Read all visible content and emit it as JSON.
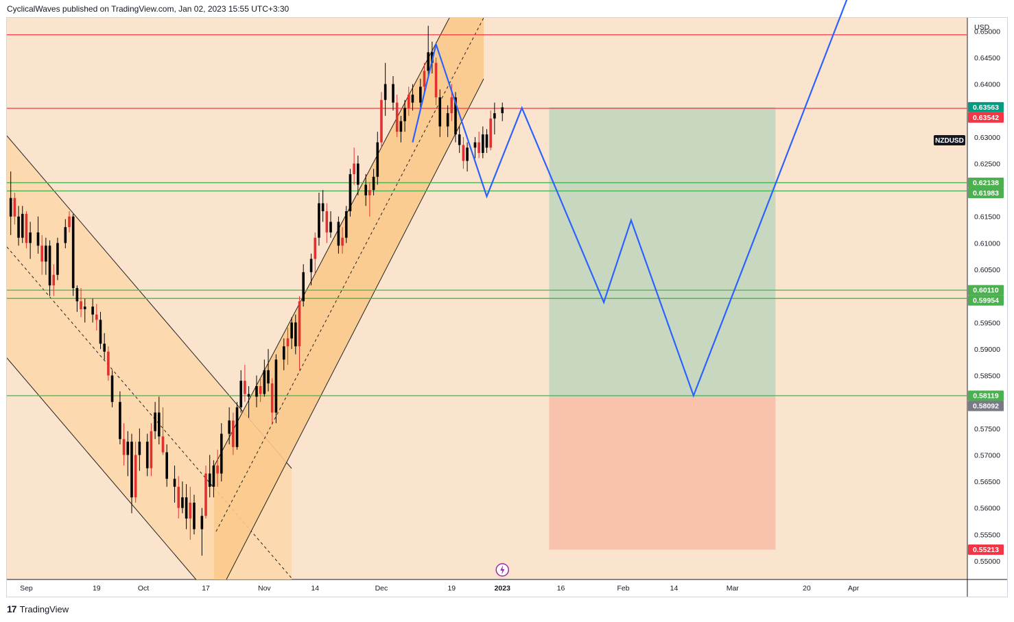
{
  "header": {
    "published_text": "CyclicalWaves published on TradingView.com, Jan 02, 2023 15:55 UTC+3:30"
  },
  "footer": {
    "brand": "TradingView"
  },
  "colors": {
    "background": "#fbe4cd",
    "channel_fill": "#fbc98c",
    "resistance": "#f23645",
    "support": "#4caf50",
    "projection": "#2962ff",
    "target_zone": "#c8d7c0",
    "stop_zone": "#f9c2ad",
    "candle": "#000000",
    "candle_alt": "#e03030",
    "last_price_badge": "#089981"
  },
  "chart_data": {
    "type": "candlestick",
    "symbol": "NZDUSD",
    "currency": "USD",
    "y_axis": {
      "range": [
        0.5465,
        0.6525
      ],
      "ticks": [
        "0.65000",
        "0.64500",
        "0.64000",
        "0.63000",
        "0.62500",
        "0.61500",
        "0.61000",
        "0.60500",
        "0.59500",
        "0.59000",
        "0.58500",
        "0.57500",
        "0.57000",
        "0.56500",
        "0.56000",
        "0.55500",
        "0.55000"
      ],
      "tick_values": [
        0.65,
        0.645,
        0.64,
        0.63,
        0.625,
        0.615,
        0.61,
        0.605,
        0.595,
        0.59,
        0.585,
        0.575,
        0.57,
        0.565,
        0.56,
        0.555,
        0.55
      ]
    },
    "x_axis": {
      "date_range": [
        "2022-08-27",
        "2023-04-30"
      ],
      "ticks": [
        {
          "label": "Sep",
          "date": "2022-09-01"
        },
        {
          "label": "19",
          "date": "2022-09-19"
        },
        {
          "label": "Oct",
          "date": "2022-10-01"
        },
        {
          "label": "17",
          "date": "2022-10-17"
        },
        {
          "label": "Nov",
          "date": "2022-11-01"
        },
        {
          "label": "14",
          "date": "2022-11-14"
        },
        {
          "label": "Dec",
          "date": "2022-12-01"
        },
        {
          "label": "19",
          "date": "2022-12-19"
        },
        {
          "label": "2023",
          "date": "2023-01-01"
        },
        {
          "label": "16",
          "date": "2023-01-16"
        },
        {
          "label": "Feb",
          "date": "2023-02-01"
        },
        {
          "label": "14",
          "date": "2023-02-14"
        },
        {
          "label": "Mar",
          "date": "2023-03-01"
        },
        {
          "label": "20",
          "date": "2023-03-20"
        },
        {
          "label": "Apr",
          "date": "2023-04-01"
        }
      ]
    },
    "price_badges": [
      {
        "value": "0.63563",
        "color": "#089981"
      },
      {
        "value": "0.63542",
        "color": "#f23645"
      },
      {
        "value": "0.62138",
        "color": "#4caf50"
      },
      {
        "value": "0.61983",
        "color": "#4caf50"
      },
      {
        "value": "0.60110",
        "color": "#4caf50"
      },
      {
        "value": "0.59954",
        "color": "#4caf50"
      },
      {
        "value": "0.58119",
        "color": "#4caf50"
      },
      {
        "value": "0.58092",
        "color": "#787b86"
      },
      {
        "value": "0.55213",
        "color": "#f23645"
      }
    ],
    "horizontal_levels": [
      {
        "price": 0.6493,
        "color": "#f23645",
        "kind": "resistance"
      },
      {
        "price": 0.63542,
        "color": "#f23645",
        "kind": "resistance"
      },
      {
        "price": 0.62138,
        "color": "#4caf50",
        "kind": "support"
      },
      {
        "price": 0.61983,
        "color": "#4caf50",
        "kind": "support"
      },
      {
        "price": 0.6011,
        "color": "#4caf50",
        "kind": "support"
      },
      {
        "price": 0.59954,
        "color": "#4caf50",
        "kind": "support"
      },
      {
        "price": 0.58119,
        "color": "#4caf50",
        "kind": "support"
      }
    ],
    "position_tool": {
      "start": "2023-01-13",
      "end": "2023-03-12",
      "entry": 0.58092,
      "target": 0.63563,
      "stop": 0.55213
    },
    "projection_path": [
      {
        "date": "2022-12-09",
        "price": 0.629
      },
      {
        "date": "2022-12-15",
        "price": 0.6475
      },
      {
        "date": "2022-12-28",
        "price": 0.6188
      },
      {
        "date": "2023-01-06",
        "price": 0.6355
      },
      {
        "date": "2023-01-27",
        "price": 0.5988
      },
      {
        "date": "2023-02-03",
        "price": 0.6143
      },
      {
        "date": "2023-02-19",
        "price": 0.5812
      },
      {
        "date": "2023-03-31",
        "price": 0.6573
      }
    ],
    "candles": [
      {
        "d": "2022-08-28",
        "o": 0.615,
        "h": 0.6235,
        "l": 0.6115,
        "c": 0.6185
      },
      {
        "d": "2022-08-29",
        "o": 0.6185,
        "h": 0.6195,
        "l": 0.6135,
        "c": 0.615
      },
      {
        "d": "2022-08-30",
        "o": 0.615,
        "h": 0.617,
        "l": 0.6095,
        "c": 0.611
      },
      {
        "d": "2022-08-31",
        "o": 0.611,
        "h": 0.617,
        "l": 0.61,
        "c": 0.6155
      },
      {
        "d": "2022-09-01",
        "o": 0.6155,
        "h": 0.616,
        "l": 0.609,
        "c": 0.61
      },
      {
        "d": "2022-09-02",
        "o": 0.61,
        "h": 0.614,
        "l": 0.607,
        "c": 0.612
      },
      {
        "d": "2022-09-04",
        "o": 0.612,
        "h": 0.615,
        "l": 0.608,
        "c": 0.6095
      },
      {
        "d": "2022-09-05",
        "o": 0.6095,
        "h": 0.6115,
        "l": 0.604,
        "c": 0.6065
      },
      {
        "d": "2022-09-06",
        "o": 0.6065,
        "h": 0.611,
        "l": 0.604,
        "c": 0.6095
      },
      {
        "d": "2022-09-07",
        "o": 0.6095,
        "h": 0.6105,
        "l": 0.6,
        "c": 0.602
      },
      {
        "d": "2022-09-08",
        "o": 0.602,
        "h": 0.606,
        "l": 0.6,
        "c": 0.604
      },
      {
        "d": "2022-09-09",
        "o": 0.604,
        "h": 0.611,
        "l": 0.603,
        "c": 0.61
      },
      {
        "d": "2022-09-11",
        "o": 0.61,
        "h": 0.6145,
        "l": 0.609,
        "c": 0.613
      },
      {
        "d": "2022-09-12",
        "o": 0.613,
        "h": 0.616,
        "l": 0.612,
        "c": 0.615
      },
      {
        "d": "2022-09-13",
        "o": 0.615,
        "h": 0.6155,
        "l": 0.6,
        "c": 0.6015
      },
      {
        "d": "2022-09-14",
        "o": 0.6015,
        "h": 0.602,
        "l": 0.597,
        "c": 0.599
      },
      {
        "d": "2022-09-15",
        "o": 0.599,
        "h": 0.6015,
        "l": 0.596,
        "c": 0.5975
      },
      {
        "d": "2022-09-16",
        "o": 0.5975,
        "h": 0.5995,
        "l": 0.595,
        "c": 0.598
      },
      {
        "d": "2022-09-18",
        "o": 0.598,
        "h": 0.5995,
        "l": 0.595,
        "c": 0.5965
      },
      {
        "d": "2022-09-19",
        "o": 0.5965,
        "h": 0.5985,
        "l": 0.5935,
        "c": 0.5955
      },
      {
        "d": "2022-09-20",
        "o": 0.5955,
        "h": 0.597,
        "l": 0.59,
        "c": 0.591
      },
      {
        "d": "2022-09-21",
        "o": 0.591,
        "h": 0.593,
        "l": 0.588,
        "c": 0.5895
      },
      {
        "d": "2022-09-22",
        "o": 0.5895,
        "h": 0.5905,
        "l": 0.584,
        "c": 0.585
      },
      {
        "d": "2022-09-23",
        "o": 0.585,
        "h": 0.586,
        "l": 0.579,
        "c": 0.58
      },
      {
        "d": "2022-09-25",
        "o": 0.58,
        "h": 0.582,
        "l": 0.572,
        "c": 0.573
      },
      {
        "d": "2022-09-26",
        "o": 0.573,
        "h": 0.576,
        "l": 0.568,
        "c": 0.57
      },
      {
        "d": "2022-09-27",
        "o": 0.57,
        "h": 0.5745,
        "l": 0.566,
        "c": 0.5725
      },
      {
        "d": "2022-09-28",
        "o": 0.5725,
        "h": 0.574,
        "l": 0.559,
        "c": 0.562
      },
      {
        "d": "2022-09-29",
        "o": 0.562,
        "h": 0.5725,
        "l": 0.561,
        "c": 0.57
      },
      {
        "d": "2022-09-30",
        "o": 0.57,
        "h": 0.575,
        "l": 0.567,
        "c": 0.5725
      },
      {
        "d": "2022-10-02",
        "o": 0.5725,
        "h": 0.574,
        "l": 0.566,
        "c": 0.5675
      },
      {
        "d": "2022-10-03",
        "o": 0.5675,
        "h": 0.576,
        "l": 0.566,
        "c": 0.5745
      },
      {
        "d": "2022-10-04",
        "o": 0.5745,
        "h": 0.58,
        "l": 0.573,
        "c": 0.578
      },
      {
        "d": "2022-10-05",
        "o": 0.578,
        "h": 0.581,
        "l": 0.572,
        "c": 0.5735
      },
      {
        "d": "2022-10-06",
        "o": 0.5735,
        "h": 0.579,
        "l": 0.57,
        "c": 0.5705
      },
      {
        "d": "2022-10-07",
        "o": 0.5705,
        "h": 0.572,
        "l": 0.564,
        "c": 0.5655
      },
      {
        "d": "2022-10-09",
        "o": 0.5655,
        "h": 0.568,
        "l": 0.561,
        "c": 0.564
      },
      {
        "d": "2022-10-10",
        "o": 0.564,
        "h": 0.566,
        "l": 0.558,
        "c": 0.56
      },
      {
        "d": "2022-10-11",
        "o": 0.56,
        "h": 0.565,
        "l": 0.559,
        "c": 0.562
      },
      {
        "d": "2022-10-12",
        "o": 0.562,
        "h": 0.5645,
        "l": 0.556,
        "c": 0.558
      },
      {
        "d": "2022-10-13",
        "o": 0.558,
        "h": 0.564,
        "l": 0.554,
        "c": 0.561
      },
      {
        "d": "2022-10-14",
        "o": 0.561,
        "h": 0.5625,
        "l": 0.555,
        "c": 0.556
      },
      {
        "d": "2022-10-16",
        "o": 0.556,
        "h": 0.56,
        "l": 0.551,
        "c": 0.5585
      },
      {
        "d": "2022-10-17",
        "o": 0.5585,
        "h": 0.568,
        "l": 0.558,
        "c": 0.5665
      },
      {
        "d": "2022-10-18",
        "o": 0.5665,
        "h": 0.57,
        "l": 0.562,
        "c": 0.564
      },
      {
        "d": "2022-10-19",
        "o": 0.564,
        "h": 0.569,
        "l": 0.562,
        "c": 0.568
      },
      {
        "d": "2022-10-20",
        "o": 0.568,
        "h": 0.571,
        "l": 0.564,
        "c": 0.5665
      },
      {
        "d": "2022-10-21",
        "o": 0.5665,
        "h": 0.576,
        "l": 0.565,
        "c": 0.574
      },
      {
        "d": "2022-10-23",
        "o": 0.574,
        "h": 0.579,
        "l": 0.572,
        "c": 0.5765
      },
      {
        "d": "2022-10-24",
        "o": 0.5765,
        "h": 0.578,
        "l": 0.57,
        "c": 0.5715
      },
      {
        "d": "2022-10-25",
        "o": 0.5715,
        "h": 0.58,
        "l": 0.571,
        "c": 0.579
      },
      {
        "d": "2022-10-26",
        "o": 0.579,
        "h": 0.586,
        "l": 0.578,
        "c": 0.584
      },
      {
        "d": "2022-10-27",
        "o": 0.584,
        "h": 0.587,
        "l": 0.58,
        "c": 0.5815
      },
      {
        "d": "2022-10-28",
        "o": 0.5815,
        "h": 0.583,
        "l": 0.577,
        "c": 0.581
      },
      {
        "d": "2022-10-30",
        "o": 0.581,
        "h": 0.585,
        "l": 0.579,
        "c": 0.583
      },
      {
        "d": "2022-10-31",
        "o": 0.583,
        "h": 0.5845,
        "l": 0.58,
        "c": 0.5815
      },
      {
        "d": "2022-11-01",
        "o": 0.5815,
        "h": 0.588,
        "l": 0.581,
        "c": 0.586
      },
      {
        "d": "2022-11-02",
        "o": 0.586,
        "h": 0.59,
        "l": 0.582,
        "c": 0.5835
      },
      {
        "d": "2022-11-03",
        "o": 0.5835,
        "h": 0.5845,
        "l": 0.576,
        "c": 0.578
      },
      {
        "d": "2022-11-04",
        "o": 0.578,
        "h": 0.589,
        "l": 0.576,
        "c": 0.588
      },
      {
        "d": "2022-11-06",
        "o": 0.588,
        "h": 0.592,
        "l": 0.586,
        "c": 0.5905
      },
      {
        "d": "2022-11-07",
        "o": 0.5905,
        "h": 0.594,
        "l": 0.587,
        "c": 0.592
      },
      {
        "d": "2022-11-08",
        "o": 0.592,
        "h": 0.596,
        "l": 0.59,
        "c": 0.595
      },
      {
        "d": "2022-11-09",
        "o": 0.595,
        "h": 0.5965,
        "l": 0.589,
        "c": 0.5905
      },
      {
        "d": "2022-11-10",
        "o": 0.5905,
        "h": 0.6,
        "l": 0.586,
        "c": 0.599
      },
      {
        "d": "2022-11-11",
        "o": 0.599,
        "h": 0.606,
        "l": 0.598,
        "c": 0.6045
      },
      {
        "d": "2022-11-13",
        "o": 0.6045,
        "h": 0.608,
        "l": 0.602,
        "c": 0.607
      },
      {
        "d": "2022-11-14",
        "o": 0.607,
        "h": 0.612,
        "l": 0.604,
        "c": 0.611
      },
      {
        "d": "2022-11-15",
        "o": 0.611,
        "h": 0.6195,
        "l": 0.6095,
        "c": 0.6175
      },
      {
        "d": "2022-11-16",
        "o": 0.6175,
        "h": 0.62,
        "l": 0.614,
        "c": 0.616
      },
      {
        "d": "2022-11-17",
        "o": 0.616,
        "h": 0.6175,
        "l": 0.61,
        "c": 0.612
      },
      {
        "d": "2022-11-18",
        "o": 0.612,
        "h": 0.616,
        "l": 0.611,
        "c": 0.614
      },
      {
        "d": "2022-11-20",
        "o": 0.614,
        "h": 0.615,
        "l": 0.608,
        "c": 0.6095
      },
      {
        "d": "2022-11-21",
        "o": 0.6095,
        "h": 0.613,
        "l": 0.608,
        "c": 0.611
      },
      {
        "d": "2022-11-22",
        "o": 0.611,
        "h": 0.617,
        "l": 0.61,
        "c": 0.616
      },
      {
        "d": "2022-11-23",
        "o": 0.616,
        "h": 0.624,
        "l": 0.615,
        "c": 0.623
      },
      {
        "d": "2022-11-24",
        "o": 0.623,
        "h": 0.628,
        "l": 0.621,
        "c": 0.625
      },
      {
        "d": "2022-11-25",
        "o": 0.625,
        "h": 0.6265,
        "l": 0.619,
        "c": 0.621
      },
      {
        "d": "2022-11-27",
        "o": 0.621,
        "h": 0.623,
        "l": 0.617,
        "c": 0.619
      },
      {
        "d": "2022-11-28",
        "o": 0.619,
        "h": 0.6215,
        "l": 0.615,
        "c": 0.62
      },
      {
        "d": "2022-11-29",
        "o": 0.62,
        "h": 0.624,
        "l": 0.619,
        "c": 0.6225
      },
      {
        "d": "2022-11-30",
        "o": 0.6225,
        "h": 0.631,
        "l": 0.621,
        "c": 0.629
      },
      {
        "d": "2022-12-01",
        "o": 0.629,
        "h": 0.6385,
        "l": 0.628,
        "c": 0.637
      },
      {
        "d": "2022-12-02",
        "o": 0.637,
        "h": 0.644,
        "l": 0.634,
        "c": 0.64
      },
      {
        "d": "2022-12-04",
        "o": 0.64,
        "h": 0.6415,
        "l": 0.635,
        "c": 0.6365
      },
      {
        "d": "2022-12-05",
        "o": 0.6365,
        "h": 0.638,
        "l": 0.63,
        "c": 0.631
      },
      {
        "d": "2022-12-06",
        "o": 0.631,
        "h": 0.634,
        "l": 0.629,
        "c": 0.633
      },
      {
        "d": "2022-12-07",
        "o": 0.633,
        "h": 0.637,
        "l": 0.631,
        "c": 0.6355
      },
      {
        "d": "2022-12-08",
        "o": 0.6355,
        "h": 0.6395,
        "l": 0.634,
        "c": 0.638
      },
      {
        "d": "2022-12-09",
        "o": 0.638,
        "h": 0.64,
        "l": 0.635,
        "c": 0.6365
      },
      {
        "d": "2022-12-11",
        "o": 0.6365,
        "h": 0.641,
        "l": 0.6355,
        "c": 0.6395
      },
      {
        "d": "2022-12-12",
        "o": 0.6395,
        "h": 0.644,
        "l": 0.638,
        "c": 0.6425
      },
      {
        "d": "2022-12-13",
        "o": 0.6425,
        "h": 0.651,
        "l": 0.641,
        "c": 0.646
      },
      {
        "d": "2022-12-14",
        "o": 0.646,
        "h": 0.648,
        "l": 0.642,
        "c": 0.644
      },
      {
        "d": "2022-12-15",
        "o": 0.644,
        "h": 0.645,
        "l": 0.636,
        "c": 0.6375
      },
      {
        "d": "2022-12-16",
        "o": 0.6375,
        "h": 0.639,
        "l": 0.63,
        "c": 0.632
      },
      {
        "d": "2022-12-18",
        "o": 0.632,
        "h": 0.636,
        "l": 0.63,
        "c": 0.6345
      },
      {
        "d": "2022-12-19",
        "o": 0.6345,
        "h": 0.64,
        "l": 0.633,
        "c": 0.6375
      },
      {
        "d": "2022-12-20",
        "o": 0.6375,
        "h": 0.6385,
        "l": 0.629,
        "c": 0.6305
      },
      {
        "d": "2022-12-21",
        "o": 0.6305,
        "h": 0.632,
        "l": 0.627,
        "c": 0.6285
      },
      {
        "d": "2022-12-22",
        "o": 0.6285,
        "h": 0.63,
        "l": 0.624,
        "c": 0.6255
      },
      {
        "d": "2022-12-23",
        "o": 0.6255,
        "h": 0.629,
        "l": 0.6235,
        "c": 0.628
      },
      {
        "d": "2022-12-25",
        "o": 0.628,
        "h": 0.63,
        "l": 0.626,
        "c": 0.629
      },
      {
        "d": "2022-12-26",
        "o": 0.629,
        "h": 0.631,
        "l": 0.626,
        "c": 0.627
      },
      {
        "d": "2022-12-27",
        "o": 0.627,
        "h": 0.632,
        "l": 0.626,
        "c": 0.6305
      },
      {
        "d": "2022-12-28",
        "o": 0.6305,
        "h": 0.6315,
        "l": 0.627,
        "c": 0.628
      },
      {
        "d": "2022-12-29",
        "o": 0.628,
        "h": 0.635,
        "l": 0.6275,
        "c": 0.6335
      },
      {
        "d": "2022-12-30",
        "o": 0.6335,
        "h": 0.6365,
        "l": 0.6305,
        "c": 0.6345
      },
      {
        "d": "2023-01-01",
        "o": 0.6345,
        "h": 0.6365,
        "l": 0.633,
        "c": 0.6356
      }
    ]
  }
}
